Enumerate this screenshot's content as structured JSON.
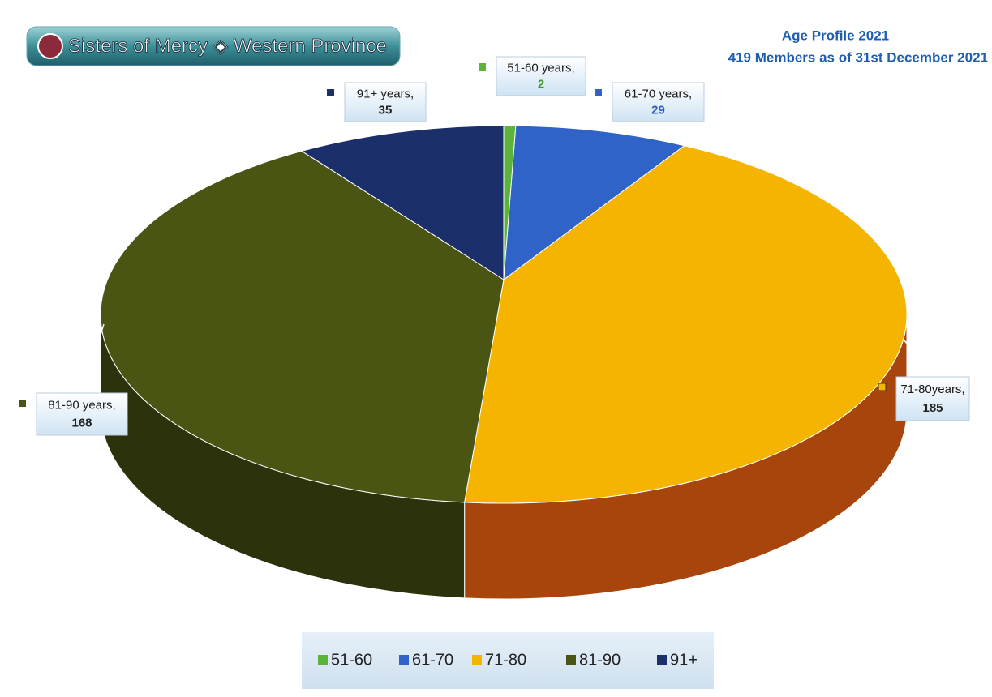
{
  "chart_data": {
    "type": "pie",
    "logo": "Sisters of Mercy ◈ Western Province",
    "title": "Age Profile 2021",
    "subtitle": "419 Members as of 31st December 2021",
    "categories": [
      "51-60",
      "61-70",
      "71-80",
      "81-90",
      "91+"
    ],
    "label_names": [
      "51-60 years,",
      "61-70 years,",
      "71-80years,",
      "81-90 years,",
      "91+ years,"
    ],
    "values": [
      2,
      29,
      185,
      168,
      35
    ],
    "colors": [
      "#5cb33a",
      "#2f63c8",
      "#f5b400",
      "#4a5514",
      "#1b2f6b"
    ],
    "legend": "bottom"
  }
}
